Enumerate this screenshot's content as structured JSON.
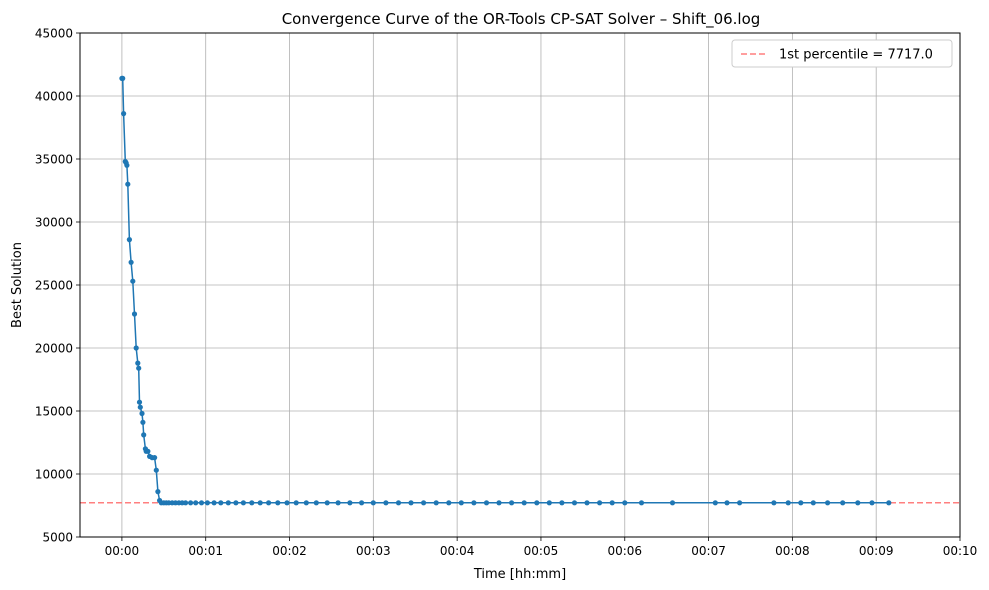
{
  "chart_data": {
    "type": "line",
    "title": "Convergence Curve of the OR-Tools CP-SAT Solver – Shift_06.log",
    "xlabel": "Time [hh:mm]",
    "ylabel": "Best Solution",
    "x_unit": "minutes",
    "xlim": [
      -0.5,
      10
    ],
    "ylim": [
      5000,
      45000
    ],
    "x_ticks": [
      0,
      1,
      2,
      3,
      4,
      5,
      6,
      7,
      8,
      9,
      10
    ],
    "x_tick_labels": [
      "00:00",
      "00:01",
      "00:02",
      "00:03",
      "00:04",
      "00:05",
      "00:06",
      "00:07",
      "00:08",
      "00:09",
      "00:10"
    ],
    "y_ticks": [
      5000,
      10000,
      15000,
      20000,
      25000,
      30000,
      35000,
      40000,
      45000
    ],
    "y_tick_labels": [
      "5000",
      "10000",
      "15000",
      "20000",
      "25000",
      "30000",
      "35000",
      "40000",
      "45000"
    ],
    "grid": true,
    "legend_position": "top-right",
    "reference_line": {
      "label": "1st percentile  = 7717.0",
      "value": 7717.0,
      "color": "#ff7f7f",
      "style": "dashed"
    },
    "series": [
      {
        "color": "#1f77b4",
        "x": [
          0.0,
          0.01,
          0.02,
          0.04,
          0.05,
          0.06,
          0.07,
          0.09,
          0.11,
          0.13,
          0.15,
          0.17,
          0.19,
          0.2,
          0.21,
          0.22,
          0.24,
          0.25,
          0.26,
          0.28,
          0.29,
          0.31,
          0.33,
          0.36,
          0.39,
          0.41,
          0.43,
          0.45,
          0.47,
          0.5,
          0.53,
          0.56,
          0.6,
          0.64,
          0.68,
          0.72,
          0.76,
          0.82,
          0.88,
          0.95,
          1.02,
          1.1,
          1.18,
          1.27,
          1.36,
          1.45,
          1.55,
          1.65,
          1.75,
          1.86,
          1.97,
          2.08,
          2.2,
          2.32,
          2.45,
          2.58,
          2.72,
          2.86,
          3.0,
          3.15,
          3.3,
          3.45,
          3.6,
          3.75,
          3.9,
          4.05,
          4.2,
          4.35,
          4.5,
          4.65,
          4.8,
          4.95,
          5.1,
          5.25,
          5.4,
          5.55,
          5.7,
          5.85,
          6.0,
          6.2,
          6.57,
          7.08,
          7.22,
          7.37,
          7.78,
          7.95,
          8.1,
          8.25,
          8.42,
          8.6,
          8.78,
          8.95,
          9.15
        ],
        "y": [
          41400,
          41400,
          38600,
          34800,
          34700,
          34500,
          33000,
          28600,
          26800,
          25300,
          22700,
          20000,
          18800,
          18400,
          15700,
          15300,
          14800,
          14100,
          13100,
          12000,
          11800,
          11800,
          11400,
          11300,
          11300,
          10300,
          8600,
          7900,
          7717,
          7717,
          7717,
          7717,
          7717,
          7717,
          7717,
          7717,
          7717,
          7717,
          7717,
          7717,
          7717,
          7717,
          7717,
          7717,
          7717,
          7717,
          7717,
          7717,
          7717,
          7717,
          7717,
          7717,
          7717,
          7717,
          7717,
          7717,
          7717,
          7717,
          7717,
          7717,
          7717,
          7717,
          7717,
          7717,
          7717,
          7717,
          7717,
          7717,
          7717,
          7717,
          7717,
          7717,
          7717,
          7717,
          7717,
          7717,
          7717,
          7717,
          7717,
          7717,
          7717,
          7717,
          7717,
          7717,
          7717,
          7717,
          7717,
          7717,
          7717,
          7717,
          7717,
          7717,
          7717
        ]
      }
    ]
  }
}
